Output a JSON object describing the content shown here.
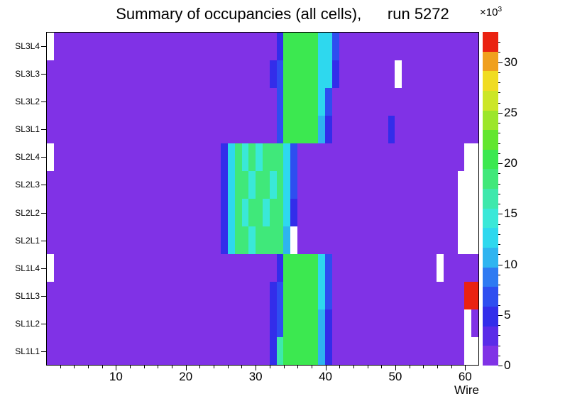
{
  "chart_data": {
    "type": "heatmap",
    "title": "Summary of occupancies (all cells),      run 5272",
    "xlabel": "Wire",
    "x_range": [
      0,
      62
    ],
    "x_ticks": [
      10,
      20,
      30,
      40,
      50,
      60
    ],
    "zmax": 33,
    "z_scale": {
      "base": "×10",
      "exponent": "3"
    },
    "colorbar_ticks": [
      0,
      5,
      10,
      15,
      20,
      25,
      30
    ],
    "background_value": 1.5,
    "zero_color": "#ffffff",
    "palette": [
      "#8032e6",
      "#5a2be8",
      "#332dea",
      "#2e4ef0",
      "#2e7af2",
      "#2eb4f0",
      "#2ed8ee",
      "#3ae8d8",
      "#3ee8ac",
      "#40e87a",
      "#3ce850",
      "#62e62e",
      "#9ce62a",
      "#cce626",
      "#f0dc22",
      "#f0a01e",
      "#ea2211"
    ],
    "values_unit": "counts × 10^3",
    "rows_top_to_bottom": [
      {
        "label": "SL3L4",
        "segments": [
          [
            1,
            1,
            0
          ],
          [
            34,
            34,
            5
          ],
          [
            35,
            39,
            20
          ],
          [
            40,
            41,
            12
          ],
          [
            42,
            42,
            6
          ]
        ]
      },
      {
        "label": "SL3L3",
        "segments": [
          [
            33,
            33,
            4
          ],
          [
            34,
            34,
            6
          ],
          [
            35,
            39,
            20
          ],
          [
            40,
            41,
            12
          ],
          [
            42,
            42,
            5
          ],
          [
            51,
            51,
            0
          ]
        ]
      },
      {
        "label": "SL3L2",
        "segments": [
          [
            34,
            34,
            6
          ],
          [
            35,
            39,
            20
          ],
          [
            40,
            40,
            12
          ],
          [
            41,
            41,
            7
          ]
        ]
      },
      {
        "label": "SL3L1",
        "segments": [
          [
            34,
            34,
            6
          ],
          [
            35,
            39,
            20
          ],
          [
            40,
            40,
            11
          ],
          [
            41,
            41,
            5
          ],
          [
            50,
            50,
            5
          ]
        ]
      },
      {
        "label": "SL2L4",
        "segments": [
          [
            1,
            1,
            0
          ],
          [
            26,
            26,
            5
          ],
          [
            27,
            27,
            12
          ],
          [
            28,
            34,
            18
          ],
          [
            29,
            29,
            14
          ],
          [
            31,
            31,
            14
          ],
          [
            35,
            35,
            12
          ],
          [
            36,
            36,
            6
          ],
          [
            61,
            62,
            0
          ]
        ]
      },
      {
        "label": "SL2L3",
        "segments": [
          [
            26,
            26,
            5
          ],
          [
            27,
            27,
            12
          ],
          [
            28,
            34,
            18
          ],
          [
            30,
            30,
            14
          ],
          [
            33,
            33,
            14
          ],
          [
            35,
            35,
            12
          ],
          [
            36,
            36,
            6
          ],
          [
            60,
            62,
            0
          ]
        ]
      },
      {
        "label": "SL2L2",
        "segments": [
          [
            26,
            26,
            4
          ],
          [
            27,
            27,
            12
          ],
          [
            28,
            34,
            18
          ],
          [
            29,
            29,
            14
          ],
          [
            32,
            32,
            14
          ],
          [
            35,
            35,
            12
          ],
          [
            36,
            36,
            5
          ],
          [
            60,
            62,
            0
          ]
        ]
      },
      {
        "label": "SL2L1",
        "segments": [
          [
            26,
            26,
            5
          ],
          [
            27,
            27,
            12
          ],
          [
            28,
            34,
            18
          ],
          [
            30,
            30,
            14
          ],
          [
            35,
            35,
            11
          ],
          [
            36,
            36,
            0
          ],
          [
            60,
            62,
            0
          ]
        ]
      },
      {
        "label": "SL1L4",
        "segments": [
          [
            1,
            1,
            0
          ],
          [
            34,
            34,
            5
          ],
          [
            35,
            39,
            20
          ],
          [
            40,
            40,
            12
          ],
          [
            41,
            41,
            7
          ],
          [
            57,
            57,
            0
          ]
        ]
      },
      {
        "label": "SL1L3",
        "segments": [
          [
            33,
            33,
            5
          ],
          [
            34,
            34,
            7
          ],
          [
            35,
            39,
            20
          ],
          [
            40,
            40,
            12
          ],
          [
            41,
            41,
            6
          ],
          [
            61,
            62,
            33
          ]
        ]
      },
      {
        "label": "SL1L2",
        "segments": [
          [
            33,
            33,
            4
          ],
          [
            34,
            34,
            6
          ],
          [
            35,
            39,
            20
          ],
          [
            40,
            40,
            11
          ],
          [
            41,
            41,
            5
          ],
          [
            61,
            61,
            0
          ]
        ]
      },
      {
        "label": "SL1L1",
        "segments": [
          [
            33,
            33,
            5
          ],
          [
            34,
            34,
            17
          ],
          [
            35,
            39,
            20
          ],
          [
            40,
            40,
            11
          ],
          [
            41,
            41,
            5
          ],
          [
            61,
            62,
            0
          ]
        ]
      }
    ]
  }
}
